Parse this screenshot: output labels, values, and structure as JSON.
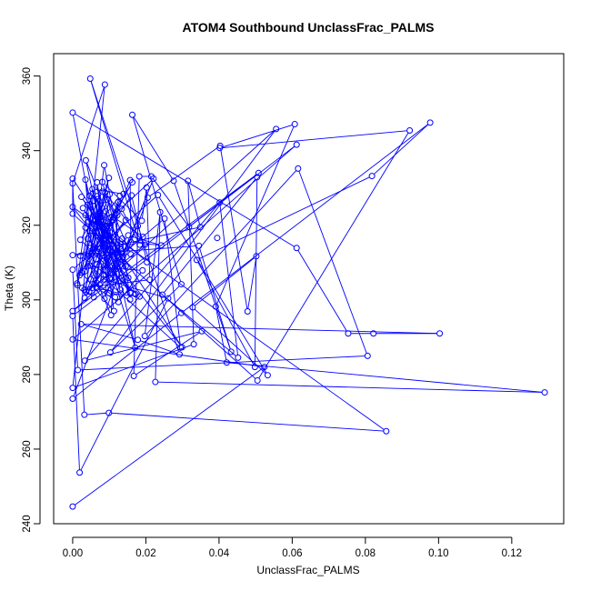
{
  "chart_data": {
    "type": "scatter",
    "title": "ATOM4 Southbound UnclassFrac_PALMS",
    "xlabel": "UnclassFrac_PALMS",
    "ylabel": "Theta (K)",
    "xlim": [
      -0.0052,
      0.1342
    ],
    "ylim": [
      240,
      366
    ],
    "x_ticks": [
      0.0,
      0.02,
      0.04,
      0.06,
      0.08,
      0.1,
      0.12
    ],
    "x_tick_labels": [
      "0.00",
      "0.02",
      "0.04",
      "0.06",
      "0.08",
      "0.10",
      "0.12"
    ],
    "y_ticks": [
      240,
      260,
      280,
      300,
      320,
      340,
      360
    ],
    "y_tick_labels": [
      "240",
      "260",
      "280",
      "300",
      "320",
      "340",
      "360"
    ],
    "grid": false,
    "marker": "open-circle",
    "connected": true,
    "colors": {
      "series": "#0000ff",
      "axes": "#000000",
      "background": "#ffffff"
    },
    "series": [
      {
        "points": [
          [
            0.0,
            244.6
          ],
          [
            0.0524,
            282.0
          ],
          [
            0.0,
            289.4
          ],
          [
            0.0612,
            341.6
          ],
          [
            0.0,
            295.7
          ],
          [
            0.0019,
            253.7
          ],
          [
            0.0261,
            300.4
          ],
          [
            0.0085,
            305.5
          ],
          [
            0.0,
            350.2
          ],
          [
            0.0612,
            313.9
          ],
          [
            0.0753,
            291.0
          ],
          [
            0.0822,
            291.0
          ],
          [
            0.1003,
            291.0
          ],
          [
            0.0023,
            293.5
          ],
          [
            0.0178,
            289.3
          ],
          [
            0.0292,
            285.4
          ],
          [
            0.0048,
            359.3
          ],
          [
            0.0183,
            314.8
          ],
          [
            0.0134,
            324.4
          ],
          [
            0.0035,
            319.4
          ],
          [
            0.0116,
            300.7
          ],
          [
            0.0049,
            305.5
          ],
          [
            0.0086,
            336.1
          ],
          [
            0.0131,
            313.5
          ],
          [
            0.0036,
            337.4
          ],
          [
            0.0105,
            306.0
          ],
          [
            0.0021,
            311.8
          ],
          [
            0.0159,
            312.2
          ],
          [
            0.0095,
            326.9
          ],
          [
            0.0048,
            313.9
          ],
          [
            0.0152,
            305.9
          ],
          [
            0.0081,
            329.0
          ],
          [
            0.0122,
            322.7
          ],
          [
            0.0117,
            308.2
          ],
          [
            0.0037,
            302.1
          ],
          [
            0.0157,
            332.1
          ],
          [
            0.0159,
            315.5
          ],
          [
            0.0242,
            314.6
          ],
          [
            0.0152,
            317.3
          ],
          [
            0.0045,
            302.2
          ],
          [
            0.0099,
            316.0
          ],
          [
            0.0145,
            321.4
          ],
          [
            0.0026,
            303.2
          ],
          [
            0.0211,
            305.4
          ],
          [
            0.0202,
            330.1
          ],
          [
            0.0189,
            321.2
          ],
          [
            0.0081,
            331.6
          ],
          [
            0.0111,
            321.4
          ],
          [
            0.0033,
            307.6
          ],
          [
            0.0074,
            323.5
          ],
          [
            0.0127,
            311.6
          ],
          [
            0.0251,
            321.8
          ],
          [
            0.0295,
            287.2
          ],
          [
            0.0047,
            309.2
          ],
          [
            0.0105,
            295.9
          ],
          [
            0.0124,
            326.2
          ],
          [
            0.0032,
            302.7
          ],
          [
            0.0058,
            300.7
          ],
          [
            0.0089,
            323.8
          ],
          [
            0.0171,
            287.2
          ],
          [
            0.0063,
            321.5
          ],
          [
            0.0119,
            312.4
          ],
          [
            0.0157,
            300.1
          ],
          [
            0.0135,
            316.4
          ],
          [
            0.0033,
            300.5
          ],
          [
            0.0069,
            327.0
          ],
          [
            0.0131,
            302.7
          ],
          [
            0.0055,
            328.5
          ],
          [
            0.0035,
            322.7
          ],
          [
            0.0098,
            312.1
          ],
          [
            0.0067,
            331.5
          ],
          [
            0.0083,
            316.2
          ],
          [
            0.0072,
            313.7
          ],
          [
            0.0041,
            316.4
          ],
          [
            0.0157,
            302.0
          ],
          [
            0.0057,
            326.6
          ],
          [
            0.0013,
            303.9
          ],
          [
            0.0048,
            321.8
          ],
          [
            0.0091,
            317.0
          ],
          [
            0.0129,
            327.9
          ],
          [
            0.0065,
            319.6
          ],
          [
            0.0143,
            314.2
          ],
          [
            0.0041,
            309.0
          ],
          [
            0.0191,
            307.9
          ],
          [
            0.0125,
            299.4
          ],
          [
            0.0065,
            303.2
          ],
          [
            0.0132,
            301.7
          ],
          [
            0.0046,
            327.9
          ],
          [
            0.0076,
            316.5
          ],
          [
            0.0102,
            305.7
          ],
          [
            0.0084,
            307.9
          ],
          [
            0.0192,
            316.9
          ],
          [
            0.0113,
            322.1
          ],
          [
            0.0087,
            300.3
          ],
          [
            0.0221,
            332.5
          ],
          [
            0.0104,
            322.0
          ],
          [
            0.0074,
            304.0
          ],
          [
            0.0136,
            312.6
          ],
          [
            0.0178,
            319.8
          ],
          [
            0.0124,
            309.8
          ],
          [
            0.0071,
            323.1
          ],
          [
            0.0101,
            305.7
          ],
          [
            0.0035,
            332.2
          ],
          [
            0.0047,
            318.5
          ],
          [
            0.0145,
            309.0
          ],
          [
            0.0076,
            321.2
          ],
          [
            0.0113,
            297.0
          ],
          [
            0.0024,
            307.3
          ],
          [
            0.0067,
            327.8
          ],
          [
            0.0099,
            301.8
          ],
          [
            0.0183,
            300.9
          ],
          [
            0.0065,
            310.9
          ],
          [
            0.0098,
            320.7
          ],
          [
            0.0163,
            331.5
          ],
          [
            0.0019,
            306.6
          ],
          [
            0.0139,
            328.4
          ],
          [
            0.0054,
            329.7
          ],
          [
            0.0172,
            301.5
          ],
          [
            0.0021,
            316.1
          ],
          [
            0.0101,
            328.3
          ],
          [
            0.0065,
            304.6
          ],
          [
            0.0044,
            321.0
          ],
          [
            0.0094,
            319.8
          ],
          [
            0.0203,
            310.1
          ],
          [
            0.0161,
            328.0
          ],
          [
            0.0051,
            312.3
          ],
          [
            0.0099,
            332.7
          ],
          [
            0.0012,
            304.4
          ],
          [
            0.0041,
            325.5
          ],
          [
            0.0101,
            315.6
          ],
          [
            0.0024,
            327.6
          ],
          [
            0.0137,
            311.4
          ],
          [
            0.0067,
            322.4
          ],
          [
            0.0158,
            301.8
          ],
          [
            0.0028,
            324.6
          ],
          [
            0.0108,
            312.7
          ],
          [
            0.0053,
            303.2
          ],
          [
            0.0198,
            314.8
          ],
          [
            0.0089,
            328.7
          ],
          [
            0.0044,
            311.8
          ]
        ],
        "extra_points": [
          [
            0.0,
            332.5
          ],
          [
            0.0,
            331.2
          ],
          [
            0.0,
            324.9
          ],
          [
            0.0,
            323.1
          ],
          [
            0.0,
            312.0
          ],
          [
            0.0,
            308.1
          ],
          [
            0.0,
            297.0
          ],
          [
            0.0,
            276.4
          ],
          [
            0.0,
            273.5
          ],
          [
            0.0014,
            281.2
          ],
          [
            0.0032,
            269.2
          ],
          [
            0.0033,
            283.7
          ],
          [
            0.0099,
            269.7
          ],
          [
            0.0103,
            285.9
          ],
          [
            0.0167,
            279.6
          ],
          [
            0.0197,
            290.3
          ],
          [
            0.0226,
            278.0
          ],
          [
            0.0299,
            287.3
          ],
          [
            0.0331,
            288.1
          ],
          [
            0.0353,
            291.6
          ],
          [
            0.0391,
            298.2
          ],
          [
            0.0421,
            283.2
          ],
          [
            0.0433,
            286.1
          ],
          [
            0.0478,
            296.9
          ],
          [
            0.0505,
            278.4
          ],
          [
            0.0533,
            279.8
          ],
          [
            0.0857,
            264.8
          ],
          [
            0.0806,
            285.0
          ],
          [
            0.129,
            275.2
          ],
          [
            0.0502,
            311.7
          ],
          [
            0.0395,
            316.6
          ],
          [
            0.0349,
            319.5
          ],
          [
            0.0318,
            319.6
          ],
          [
            0.0297,
            304.2
          ],
          [
            0.0339,
            310.7
          ],
          [
            0.0345,
            314.5
          ],
          [
            0.0402,
            326.1
          ],
          [
            0.0315,
            331.9
          ],
          [
            0.0233,
            328.1
          ],
          [
            0.0215,
            333.1
          ],
          [
            0.0182,
            333.1
          ],
          [
            0.0402,
            340.7
          ],
          [
            0.0403,
            341.3
          ],
          [
            0.0504,
            332.9
          ],
          [
            0.0508,
            334.0
          ],
          [
            0.0556,
            345.8
          ],
          [
            0.0607,
            347.1
          ],
          [
            0.0616,
            335.2
          ],
          [
            0.0818,
            333.2
          ],
          [
            0.0921,
            345.4
          ],
          [
            0.0977,
            347.5
          ],
          [
            0.0163,
            349.6
          ],
          [
            0.0088,
            357.7
          ],
          [
            0.0205,
            327.4
          ],
          [
            0.0239,
            323.5
          ],
          [
            0.0276,
            331.9
          ],
          [
            0.0328,
            298.0
          ],
          [
            0.0452,
            284.5
          ],
          [
            0.0498,
            282.0
          ],
          [
            0.0297,
            296.5
          ],
          [
            0.0245,
            301.4
          ]
        ]
      }
    ]
  }
}
